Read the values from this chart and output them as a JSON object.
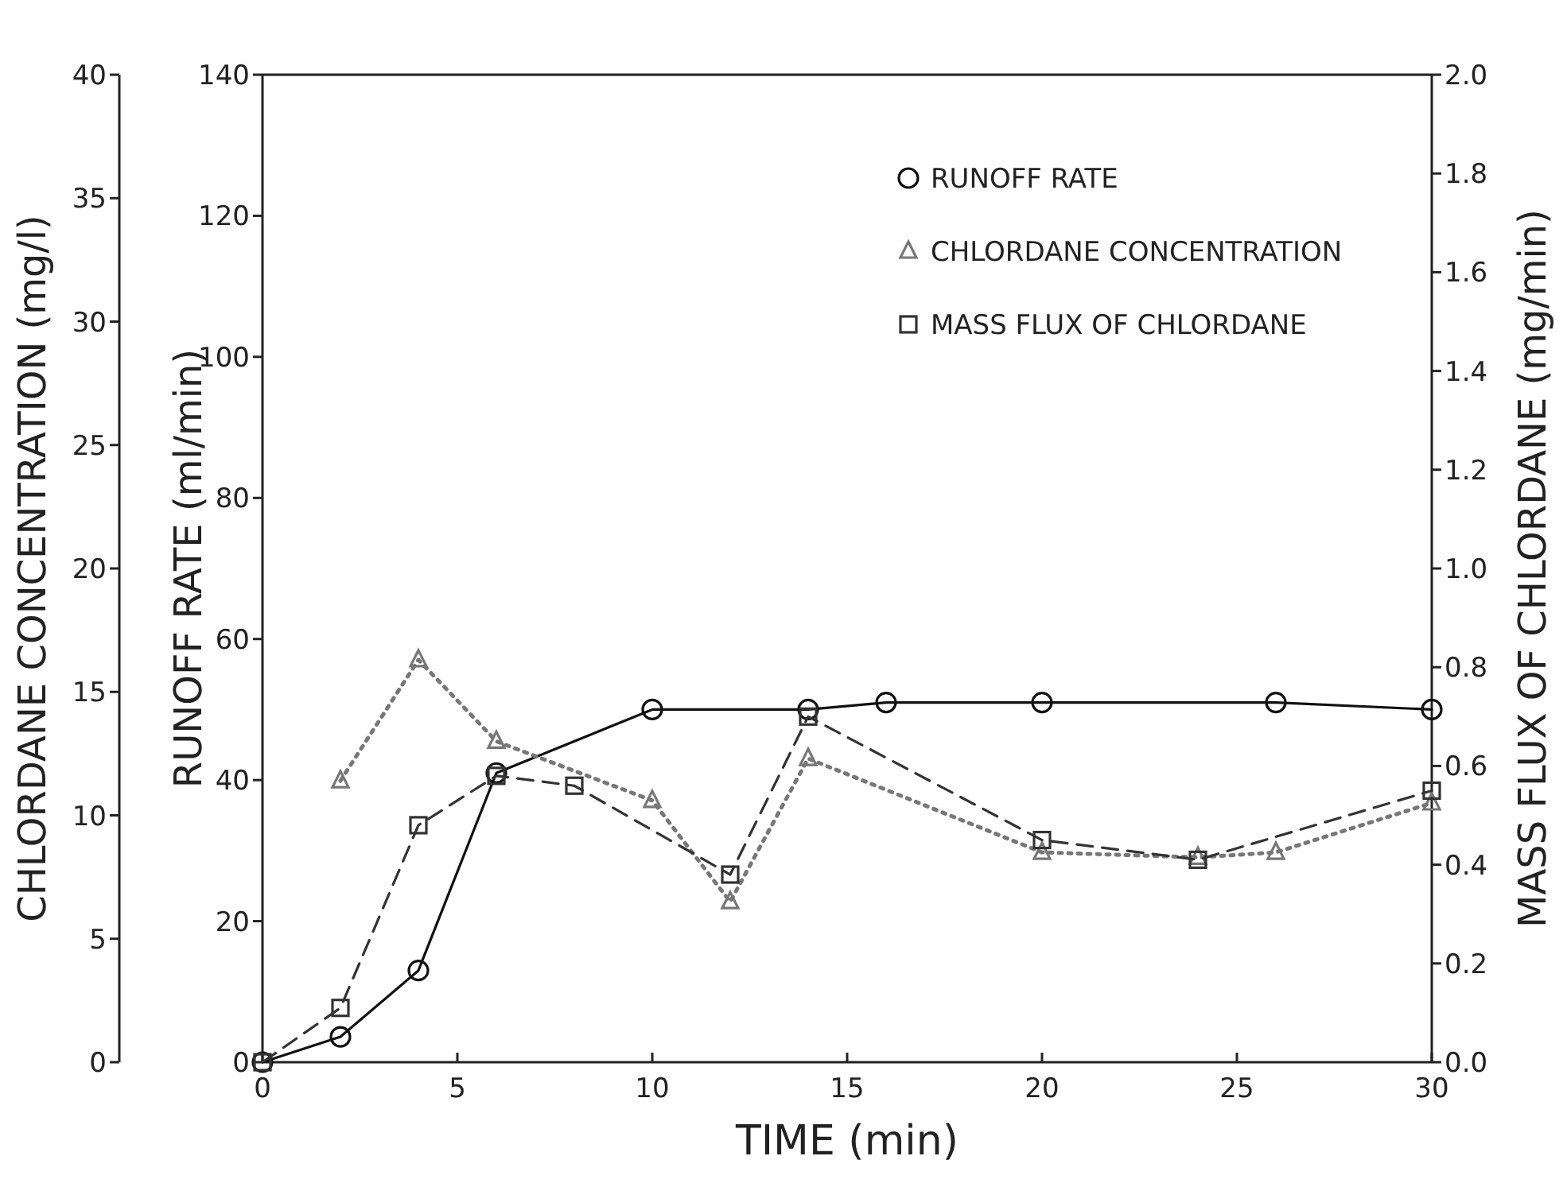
{
  "chart_data": {
    "type": "line",
    "xlabel": "TIME (min)",
    "ylabel": "RUNOFF RATE (ml/min)",
    "y2label": "MASS FLUX OF CHLORDANE (mg/min)",
    "y3label": "CHLORDANE CONCENTRATION (mg/l)",
    "xlim": [
      0,
      30
    ],
    "xticks": [
      0,
      5,
      10,
      15,
      20,
      25,
      30
    ],
    "ylim": [
      0,
      140
    ],
    "yticks": [
      0,
      20,
      40,
      60,
      80,
      100,
      120,
      140
    ],
    "y2lim": [
      0,
      2
    ],
    "y2ticks": [
      {
        "value": 0,
        "label": "0.0"
      },
      {
        "value": 0.2,
        "label": "0.2"
      },
      {
        "value": 0.4,
        "label": "0.4"
      },
      {
        "value": 0.6,
        "label": "0.6"
      },
      {
        "value": 0.8,
        "label": "0.8"
      },
      {
        "value": 1,
        "label": "1.0"
      },
      {
        "value": 1.2,
        "label": "1.2"
      },
      {
        "value": 1.4,
        "label": "1.4"
      },
      {
        "value": 1.6,
        "label": "1.6"
      },
      {
        "value": 1.8,
        "label": "1.8"
      },
      {
        "value": 2,
        "label": "2.0"
      }
    ],
    "y3lim": [
      0,
      40
    ],
    "y3ticks": [
      0,
      5,
      10,
      15,
      20,
      25,
      30,
      35,
      40
    ],
    "legend": "top right",
    "grid": false,
    "series": [
      {
        "name": "RUNOFF RATE",
        "color": "#111111",
        "axis": "y",
        "marker": "circle",
        "line_style": "solid",
        "x": [
          0,
          2,
          4,
          6,
          10,
          14,
          16,
          20,
          26,
          30
        ],
        "values": [
          0,
          3.6,
          13,
          41,
          50,
          50,
          51,
          51,
          51,
          50
        ]
      },
      {
        "name": "CHLORDANE CONCENTRATION",
        "color": "#777777",
        "axis": "y3",
        "marker": "triangle",
        "line_style": "dotted",
        "x": [
          2,
          4,
          6,
          10,
          12,
          14,
          20,
          24,
          26,
          30
        ],
        "values": [
          11.4,
          16.3,
          13,
          10.6,
          6.5,
          12.3,
          8.5,
          8.3,
          8.5,
          10.5
        ]
      },
      {
        "name": "MASS FLUX OF CHLORDANE",
        "color": "#333333",
        "axis": "y2",
        "marker": "square",
        "line_style": "dashed",
        "x": [
          0,
          2,
          4,
          6,
          8,
          12,
          14,
          20,
          24,
          30
        ],
        "values": [
          0,
          0.11,
          0.48,
          0.58,
          0.56,
          0.38,
          0.7,
          0.45,
          0.41,
          0.55
        ]
      }
    ]
  }
}
